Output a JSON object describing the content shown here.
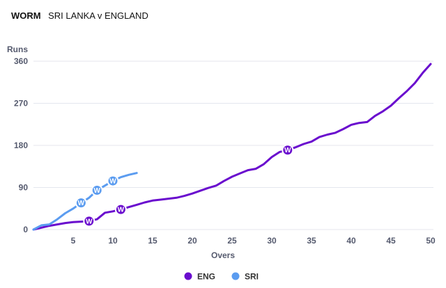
{
  "header": {
    "title_bold": "WORM",
    "title_rest": "SRI LANKA v ENGLAND"
  },
  "chart_data": {
    "type": "line",
    "title": "WORM SRI LANKA v ENGLAND",
    "xlabel": "Overs",
    "ylabel": "Runs",
    "xlim": [
      0,
      50
    ],
    "ylim": [
      0,
      360
    ],
    "x_ticks": [
      5,
      10,
      15,
      20,
      25,
      30,
      35,
      40,
      45,
      50
    ],
    "y_ticks": [
      0,
      90,
      180,
      270,
      360
    ],
    "grid": "horizontal",
    "legend_position": "bottom-center",
    "wicket_marker_label": "W",
    "series": [
      {
        "name": "ENG",
        "color": "#6a0dce",
        "x": [
          0,
          1,
          2,
          3,
          4,
          5,
          6,
          7,
          8,
          9,
          10,
          11,
          12,
          13,
          14,
          15,
          16,
          17,
          18,
          19,
          20,
          21,
          22,
          23,
          24,
          25,
          26,
          27,
          28,
          29,
          30,
          31,
          32,
          33,
          34,
          35,
          36,
          37,
          38,
          39,
          40,
          41,
          42,
          43,
          44,
          45,
          46,
          47,
          48,
          49,
          50
        ],
        "values": [
          0,
          4,
          8,
          11,
          14,
          16,
          17,
          18,
          22,
          36,
          39,
          43,
          48,
          53,
          58,
          62,
          64,
          66,
          68,
          72,
          77,
          83,
          89,
          94,
          104,
          113,
          120,
          127,
          130,
          140,
          155,
          166,
          170,
          176,
          183,
          188,
          198,
          203,
          207,
          215,
          224,
          228,
          230,
          243,
          253,
          265,
          281,
          296,
          313,
          335,
          354
        ],
        "wickets": [
          {
            "over": 7,
            "runs": 18
          },
          {
            "over": 11,
            "runs": 43
          },
          {
            "over": 32,
            "runs": 170
          }
        ]
      },
      {
        "name": "SRI",
        "color": "#5b9cf0",
        "x": [
          0,
          1,
          2,
          3,
          4,
          5,
          6,
          7,
          8,
          9,
          10,
          11,
          12,
          13
        ],
        "values": [
          0,
          9,
          11,
          22,
          35,
          45,
          57,
          68,
          84,
          94,
          104,
          112,
          117,
          121
        ],
        "wickets": [
          {
            "over": 6,
            "runs": 57
          },
          {
            "over": 8,
            "runs": 84
          },
          {
            "over": 10,
            "runs": 104
          }
        ]
      }
    ]
  }
}
